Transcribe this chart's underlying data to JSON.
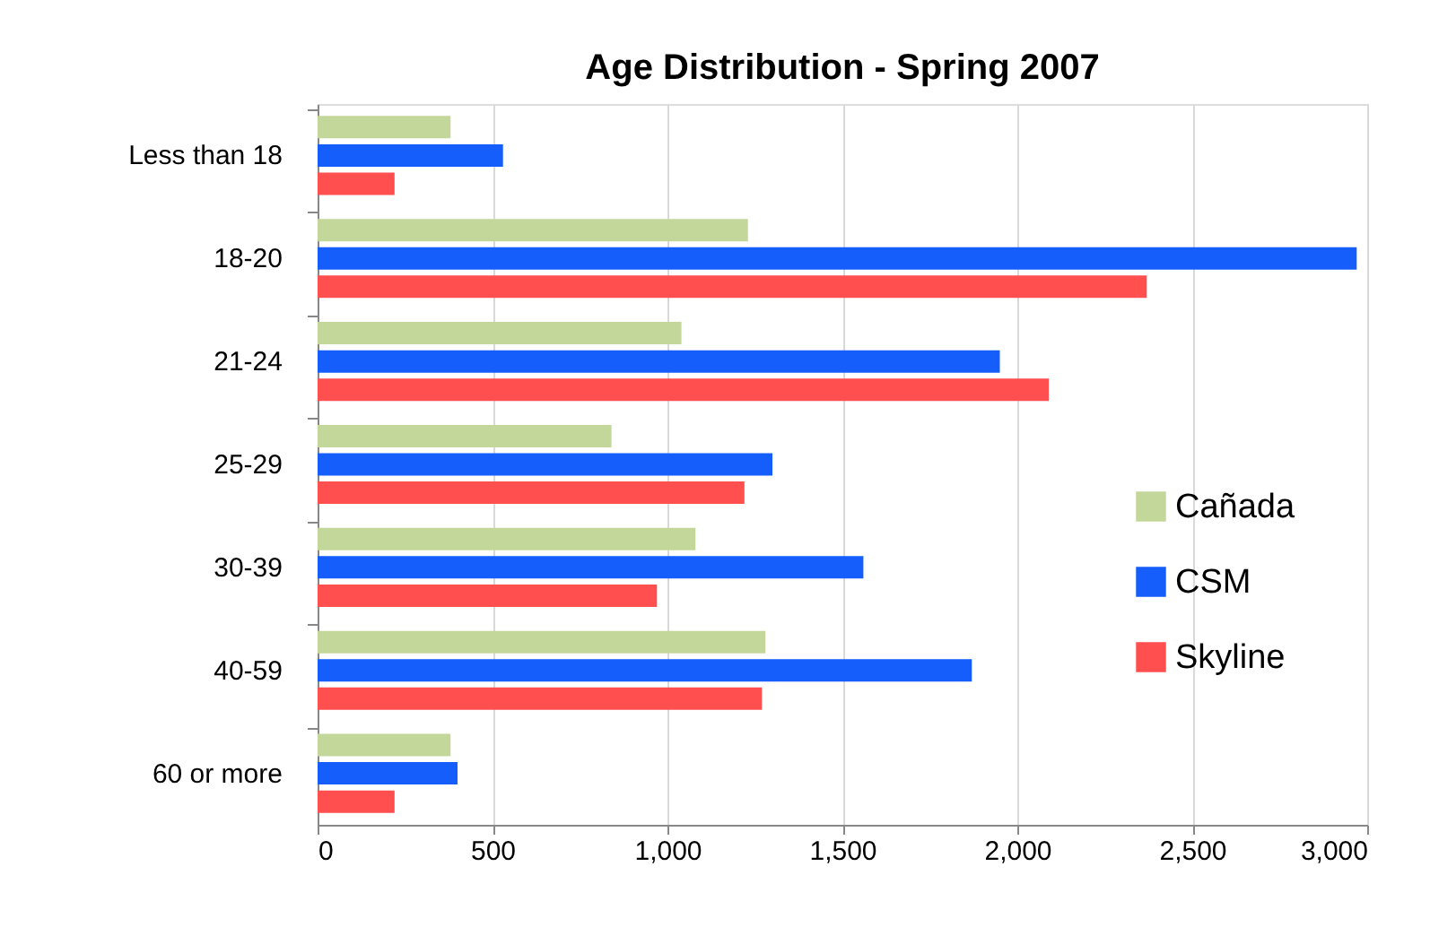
{
  "chart_data": {
    "type": "bar",
    "orientation": "horizontal",
    "title": "Age Distribution - Spring  2007",
    "categories": [
      "Less than 18",
      "18-20",
      "21-24",
      "25-29",
      "30-39",
      "40-59",
      "60 or more"
    ],
    "series": [
      {
        "name": "Cañada",
        "color": "#c4d79b",
        "values": [
          380,
          1230,
          1040,
          840,
          1080,
          1280,
          380
        ]
      },
      {
        "name": "CSM",
        "color": "#165efc",
        "values": [
          530,
          2970,
          1950,
          1300,
          1560,
          1870,
          400
        ]
      },
      {
        "name": "Skyline",
        "color": "#ff4f4f",
        "values": [
          220,
          2370,
          2090,
          1220,
          970,
          1270,
          220
        ]
      }
    ],
    "xlim": [
      0,
      3000
    ],
    "xticks": [
      0,
      500,
      {
        "value": 1000,
        "label": "1,000"
      },
      {
        "value": 1500,
        "label": "1,500"
      },
      {
        "value": 2000,
        "label": "2,000"
      },
      {
        "value": 2500,
        "label": "2,500"
      },
      {
        "value": 3000,
        "label": "3,000"
      }
    ],
    "grid": "x",
    "legend": "right"
  }
}
